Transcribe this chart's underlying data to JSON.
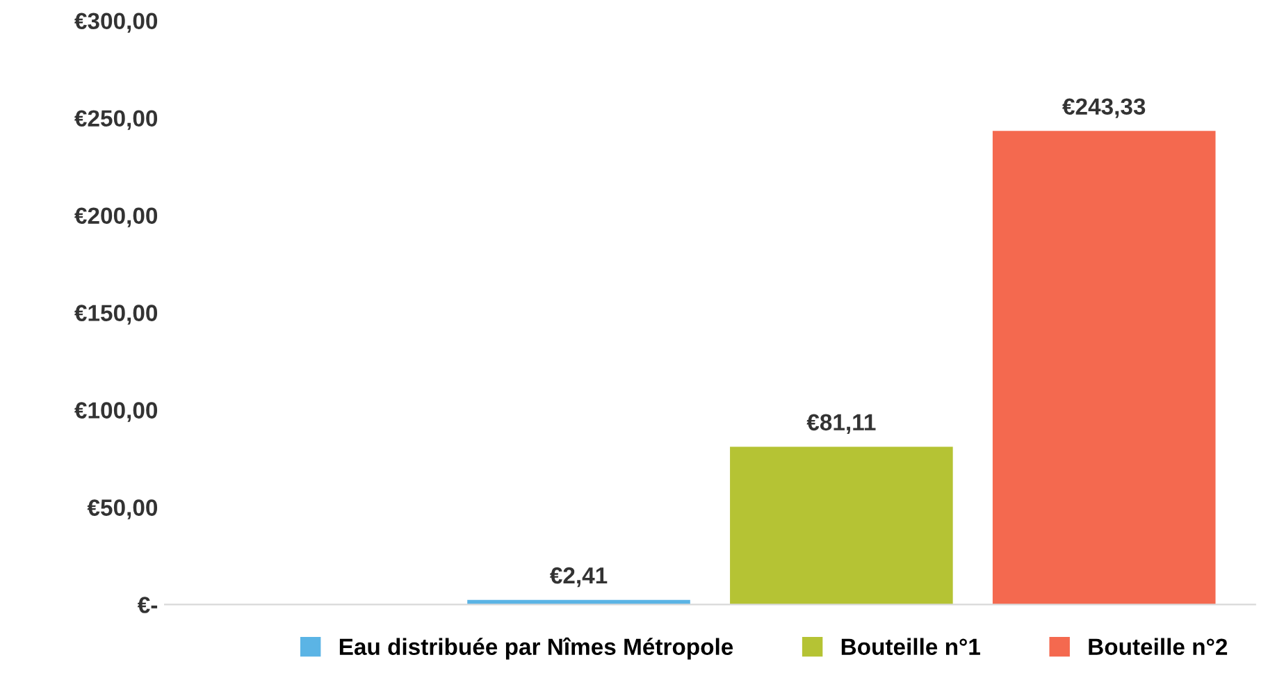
{
  "chart_data": {
    "type": "bar",
    "categories": [
      null
    ],
    "series": [
      {
        "name": "Eau distribuée par Nîmes Métropole",
        "color": "#5bb4e5",
        "values": [
          2.41
        ],
        "value_labels": [
          "€2,41"
        ]
      },
      {
        "name": "Bouteille n°1",
        "color": "#b5c334",
        "values": [
          81.11
        ],
        "value_labels": [
          "€81,11"
        ]
      },
      {
        "name": "Bouteille n°2",
        "color": "#f4694f",
        "values": [
          243.33
        ],
        "value_labels": [
          "€243,33"
        ]
      }
    ],
    "ylim": [
      0,
      300
    ],
    "yticks": [
      {
        "value": 0,
        "label": "€-"
      },
      {
        "value": 50,
        "label": "€50,00"
      },
      {
        "value": 100,
        "label": "€100,00"
      },
      {
        "value": 150,
        "label": "€150,00"
      },
      {
        "value": 200,
        "label": "€200,00"
      },
      {
        "value": 250,
        "label": "€250,00"
      },
      {
        "value": 300,
        "label": "€300,00"
      }
    ],
    "grid": false,
    "legend": "bottom"
  }
}
